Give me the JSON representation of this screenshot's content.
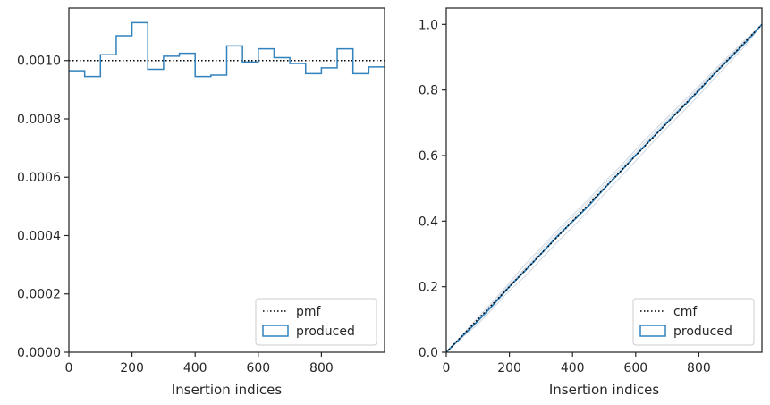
{
  "chart_data": [
    {
      "type": "line",
      "step": true,
      "xlabel": "Insertion indices",
      "ylabel": "",
      "title": "",
      "xlim": [
        0,
        1000
      ],
      "ylim": [
        0,
        0.00118
      ],
      "xticks": [
        0,
        200,
        400,
        600,
        800
      ],
      "xtick_labels": [
        "0",
        "200",
        "400",
        "600",
        "800"
      ],
      "yticks": [
        0,
        0.0002,
        0.0004,
        0.0006,
        0.0008,
        0.001
      ],
      "ytick_labels": [
        "0.0000",
        "0.0002",
        "0.0004",
        "0.0006",
        "0.0008",
        "0.0010"
      ],
      "legend_position": "lower-right",
      "colors": {
        "produced": "#3182bd",
        "pmf": "#000000",
        "axes": "#262626"
      },
      "series": [
        {
          "name": "pmf",
          "style": "dotted",
          "x": [
            0,
            1000
          ],
          "values": [
            0.001,
            0.001
          ]
        },
        {
          "name": "produced",
          "style": "step",
          "bin_edges": [
            0,
            50,
            100,
            150,
            200,
            250,
            300,
            350,
            400,
            450,
            500,
            550,
            600,
            650,
            700,
            750,
            800,
            850,
            900,
            950,
            1000
          ],
          "values": [
            0.000965,
            0.000945,
            0.00102,
            0.001085,
            0.00113,
            0.00097,
            0.001015,
            0.001025,
            0.000945,
            0.00095,
            0.00105,
            0.000995,
            0.00104,
            0.00101,
            0.00099,
            0.000955,
            0.000975,
            0.00104,
            0.000955,
            0.000978
          ]
        }
      ]
    },
    {
      "type": "line",
      "step": true,
      "xlabel": "Insertion indices",
      "ylabel": "",
      "title": "",
      "xlim": [
        0,
        1000
      ],
      "ylim": [
        0,
        1.05
      ],
      "xticks": [
        0,
        200,
        400,
        600,
        800
      ],
      "xtick_labels": [
        "0",
        "200",
        "400",
        "600",
        "800"
      ],
      "yticks": [
        0,
        0.2,
        0.4,
        0.6,
        0.8,
        1.0
      ],
      "ytick_labels": [
        "0.0",
        "0.2",
        "0.4",
        "0.6",
        "0.8",
        "1.0"
      ],
      "legend_position": "lower-right",
      "colors": {
        "produced": "#3182bd",
        "cmf": "#000000",
        "band": "#cfd8e3",
        "axes": "#262626"
      },
      "series": [
        {
          "name": "cmf",
          "style": "dotted",
          "x": [
            0,
            1000
          ],
          "values": [
            0,
            1
          ]
        },
        {
          "name": "produced",
          "style": "step",
          "x": [
            0,
            50,
            100,
            150,
            200,
            250,
            300,
            350,
            400,
            450,
            500,
            550,
            600,
            650,
            700,
            750,
            800,
            850,
            900,
            950,
            1000
          ],
          "values": [
            0,
            0.048,
            0.095,
            0.146,
            0.2,
            0.249,
            0.3,
            0.352,
            0.399,
            0.446,
            0.499,
            0.549,
            0.601,
            0.651,
            0.701,
            0.749,
            0.798,
            0.85,
            0.898,
            0.947,
            1.0
          ]
        }
      ],
      "bands": [
        [
          0,
          0.052,
          0.106,
          0.158,
          0.212,
          0.268,
          0.318,
          0.37,
          0.418,
          0.466,
          0.518,
          0.566,
          0.618,
          0.668,
          0.716,
          0.764,
          0.812,
          0.862,
          0.91,
          0.956,
          1.0
        ],
        [
          0,
          0.044,
          0.086,
          0.136,
          0.188,
          0.232,
          0.284,
          0.334,
          0.382,
          0.43,
          0.482,
          0.532,
          0.584,
          0.636,
          0.686,
          0.734,
          0.784,
          0.836,
          0.886,
          0.938,
          1.0
        ],
        [
          0,
          0.05,
          0.098,
          0.152,
          0.206,
          0.256,
          0.31,
          0.362,
          0.41,
          0.458,
          0.51,
          0.558,
          0.61,
          0.66,
          0.708,
          0.756,
          0.806,
          0.856,
          0.904,
          0.952,
          1.0
        ]
      ]
    }
  ]
}
